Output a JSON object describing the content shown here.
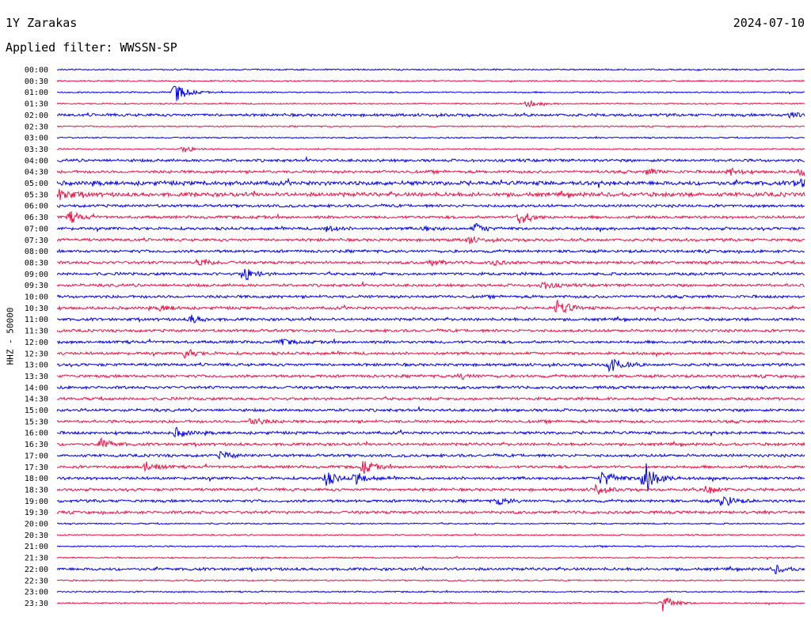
{
  "header": {
    "station": "1Y Zarakas",
    "date": "2024-07-10",
    "filter": "Applied filter: WWSSN-SP"
  },
  "axis": {
    "ylabel": "HHZ - 50000"
  },
  "colors": {
    "blue": "#0000ee",
    "red": "#ee1144"
  },
  "chart_data": {
    "type": "line",
    "subtype": "helicorder",
    "row_duration_minutes": 30,
    "row_labels": [
      "00:00",
      "00:30",
      "01:00",
      "01:30",
      "02:00",
      "02:30",
      "03:00",
      "03:30",
      "04:00",
      "04:30",
      "05:00",
      "05:30",
      "06:00",
      "06:30",
      "07:00",
      "07:30",
      "08:00",
      "08:30",
      "09:00",
      "09:30",
      "10:00",
      "10:30",
      "11:00",
      "11:30",
      "12:00",
      "12:30",
      "13:00",
      "13:30",
      "14:00",
      "14:30",
      "15:00",
      "15:30",
      "16:00",
      "16:30",
      "17:00",
      "17:30",
      "18:00",
      "18:30",
      "19:00",
      "19:30",
      "20:00",
      "20:30",
      "21:00",
      "21:30",
      "22:00",
      "22:30",
      "23:00",
      "23:30"
    ],
    "row_colors": [
      "blue",
      "red"
    ],
    "noise_amplitude": [
      1,
      1,
      1,
      1,
      2,
      1,
      1,
      1,
      2,
      2,
      3,
      3,
      2,
      2,
      2,
      2,
      2,
      2,
      2,
      2,
      2,
      2,
      2,
      2,
      2,
      2,
      2,
      2,
      2,
      2,
      2,
      2,
      2,
      2,
      2,
      2,
      2,
      2,
      2,
      2,
      1,
      1,
      1,
      1,
      2,
      1,
      1,
      1
    ],
    "events": [
      {
        "row": 2,
        "pos": 0.158,
        "amp": 14
      },
      {
        "row": 3,
        "pos": 0.63,
        "amp": 4
      },
      {
        "row": 4,
        "pos": 0.98,
        "amp": 4
      },
      {
        "row": 7,
        "pos": 0.17,
        "amp": 4
      },
      {
        "row": 9,
        "pos": 0.79,
        "amp": 4
      },
      {
        "row": 9,
        "pos": 0.9,
        "amp": 5
      },
      {
        "row": 9,
        "pos": 0.995,
        "amp": 7
      },
      {
        "row": 10,
        "pos": 0.99,
        "amp": 7
      },
      {
        "row": 11,
        "pos": 0.005,
        "amp": 8
      },
      {
        "row": 13,
        "pos": 0.018,
        "amp": 7
      },
      {
        "row": 13,
        "pos": 0.62,
        "amp": 10
      },
      {
        "row": 14,
        "pos": 0.36,
        "amp": 4
      },
      {
        "row": 14,
        "pos": 0.49,
        "amp": 3
      },
      {
        "row": 14,
        "pos": 0.56,
        "amp": 6
      },
      {
        "row": 15,
        "pos": 0.55,
        "amp": 4
      },
      {
        "row": 17,
        "pos": 0.19,
        "amp": 6
      },
      {
        "row": 17,
        "pos": 0.5,
        "amp": 4
      },
      {
        "row": 17,
        "pos": 0.58,
        "amp": 4
      },
      {
        "row": 18,
        "pos": 0.25,
        "amp": 9
      },
      {
        "row": 19,
        "pos": 0.65,
        "amp": 5
      },
      {
        "row": 21,
        "pos": 0.14,
        "amp": 4
      },
      {
        "row": 21,
        "pos": 0.67,
        "amp": 12
      },
      {
        "row": 22,
        "pos": 0.18,
        "amp": 5
      },
      {
        "row": 24,
        "pos": 0.3,
        "amp": 4
      },
      {
        "row": 25,
        "pos": 0.17,
        "amp": 6
      },
      {
        "row": 26,
        "pos": 0.74,
        "amp": 12
      },
      {
        "row": 27,
        "pos": 0.54,
        "amp": 4
      },
      {
        "row": 31,
        "pos": 0.26,
        "amp": 6
      },
      {
        "row": 32,
        "pos": 0.16,
        "amp": 6
      },
      {
        "row": 33,
        "pos": 0.06,
        "amp": 7
      },
      {
        "row": 34,
        "pos": 0.22,
        "amp": 5
      },
      {
        "row": 35,
        "pos": 0.12,
        "amp": 7
      },
      {
        "row": 35,
        "pos": 0.41,
        "amp": 8
      },
      {
        "row": 36,
        "pos": 0.36,
        "amp": 9
      },
      {
        "row": 36,
        "pos": 0.4,
        "amp": 7
      },
      {
        "row": 36,
        "pos": 0.73,
        "amp": 12
      },
      {
        "row": 36,
        "pos": 0.786,
        "amp": 24
      },
      {
        "row": 37,
        "pos": 0.72,
        "amp": 7
      },
      {
        "row": 37,
        "pos": 0.87,
        "amp": 6
      },
      {
        "row": 38,
        "pos": 0.59,
        "amp": 5
      },
      {
        "row": 38,
        "pos": 0.89,
        "amp": 9
      },
      {
        "row": 44,
        "pos": 0.96,
        "amp": 5
      },
      {
        "row": 47,
        "pos": 0.81,
        "amp": 12
      }
    ]
  }
}
